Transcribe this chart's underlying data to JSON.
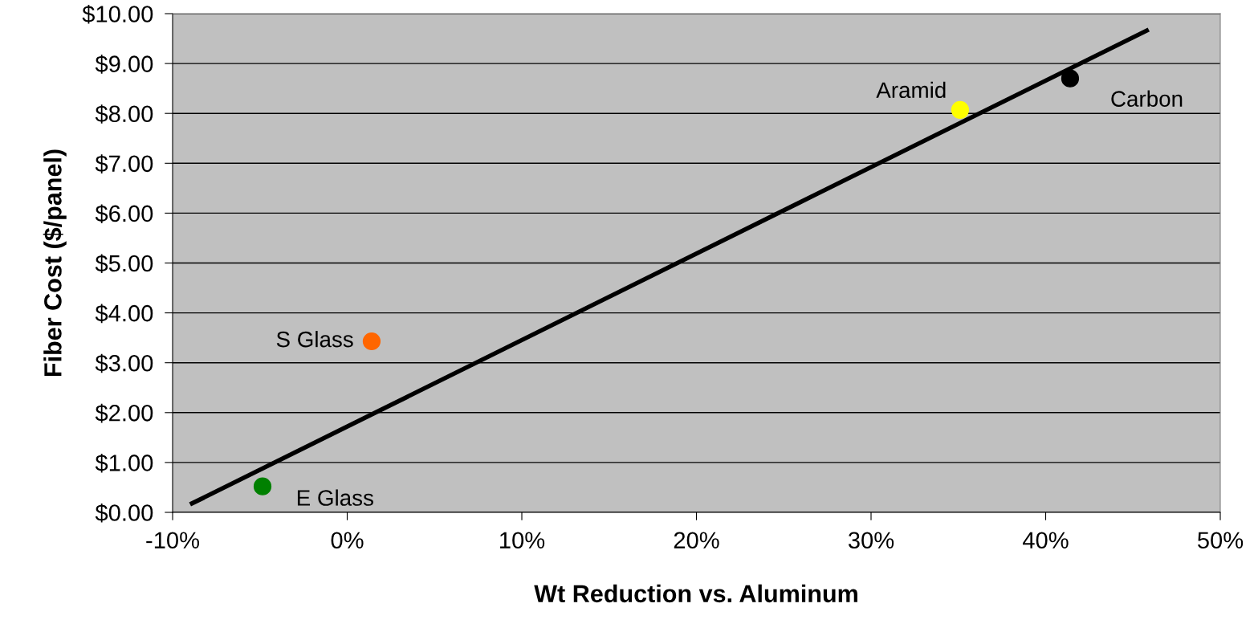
{
  "chart_data": {
    "type": "scatter",
    "xlabel": "Wt Reduction vs. Aluminum",
    "ylabel": "Fiber Cost ($/panel)",
    "series": [
      {
        "name": "E Glass",
        "color": "#008000",
        "marker": "circle",
        "x": [
          -4.85
        ],
        "values": [
          0.52
        ]
      },
      {
        "name": "S Glass",
        "color": "#ff6600",
        "marker": "circle",
        "x": [
          1.4
        ],
        "values": [
          3.43
        ]
      },
      {
        "name": "Aramid",
        "color": "#ffff00",
        "marker": "circle",
        "x": [
          35.1
        ],
        "values": [
          8.07
        ]
      },
      {
        "name": "Carbon",
        "color": "#000000",
        "marker": "circle",
        "x": [
          41.4
        ],
        "values": [
          8.7
        ]
      },
      {
        "type": "line",
        "color": "#000000",
        "x": [
          -9.0,
          45.9
        ],
        "values": [
          0.16,
          9.68
        ]
      }
    ],
    "grid": "y",
    "xlim": [
      -10,
      50
    ],
    "ylim": [
      0,
      10
    ],
    "xticks": [
      {
        "value": -10,
        "label": "-10%"
      },
      {
        "value": 0,
        "label": "0%"
      },
      {
        "value": 10,
        "label": "10%"
      },
      {
        "value": 20,
        "label": "20%"
      },
      {
        "value": 30,
        "label": "30%"
      },
      {
        "value": 40,
        "label": "40%"
      },
      {
        "value": 50,
        "label": "50%"
      }
    ],
    "yticks": [
      {
        "value": 0,
        "label": "$0.00"
      },
      {
        "value": 1,
        "label": "$1.00"
      },
      {
        "value": 2,
        "label": "$2.00"
      },
      {
        "value": 3,
        "label": "$3.00"
      },
      {
        "value": 4,
        "label": "$4.00"
      },
      {
        "value": 5,
        "label": "$5.00"
      },
      {
        "value": 6,
        "label": "$6.00"
      },
      {
        "value": 7,
        "label": "$7.00"
      },
      {
        "value": 8,
        "label": "$8.00"
      },
      {
        "value": 9,
        "label": "$9.00"
      },
      {
        "value": 10,
        "label": "$10.00"
      }
    ]
  }
}
